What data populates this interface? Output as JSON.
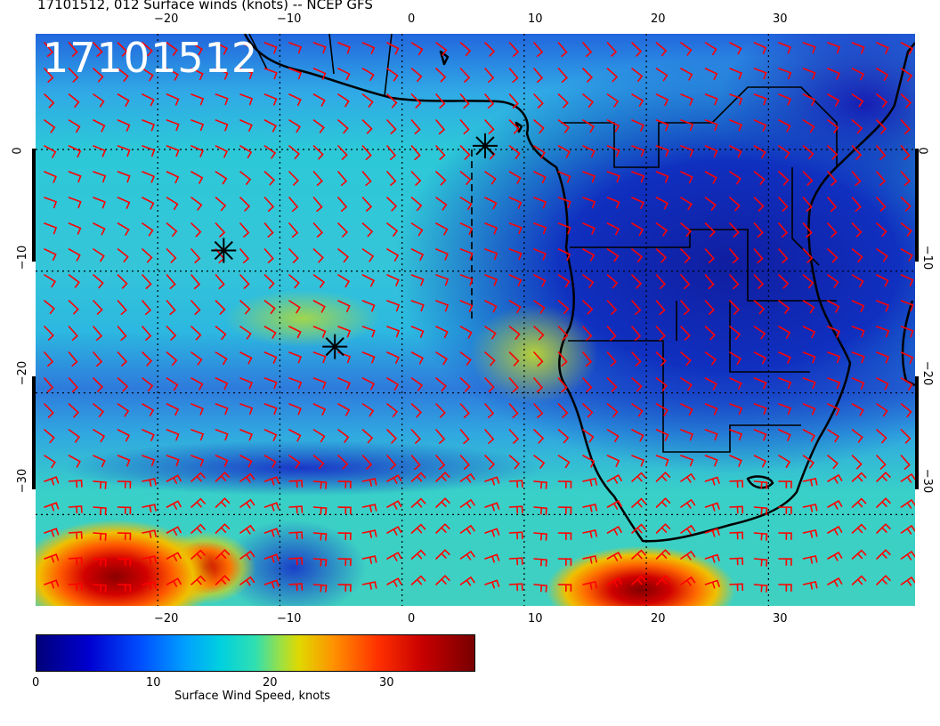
{
  "title": "17101512, 012 Surface winds (knots) -- NCEP GFS",
  "stamp": "17101512",
  "lon_ticks_top": [
    "−20",
    "−10",
    "0",
    "10",
    "20",
    "30"
  ],
  "lon_ticks_bottom": [
    "−20",
    "−10",
    "0",
    "10",
    "20",
    "30"
  ],
  "lat_ticks_left": [
    "0",
    "−10",
    "−20",
    "−30"
  ],
  "lat_ticks_right": [
    "0",
    "−10",
    "−20",
    "−30"
  ],
  "colorbar": {
    "ticks": [
      "0",
      "10",
      "20",
      "30"
    ],
    "label": "Surface Wind Speed, knots",
    "range": [
      0,
      38
    ]
  },
  "markers": [
    {
      "name": "storm-marker-1",
      "lon": 6.8,
      "lat": 0.3
    },
    {
      "name": "storm-marker-2",
      "lon": -14.6,
      "lat": -8.3
    },
    {
      "name": "storm-marker-3",
      "lon": -5.5,
      "lat": -16.2
    }
  ],
  "colors": {
    "barbs": "#ff0000",
    "coast": "#000000",
    "label_text": "#ffffff"
  }
}
